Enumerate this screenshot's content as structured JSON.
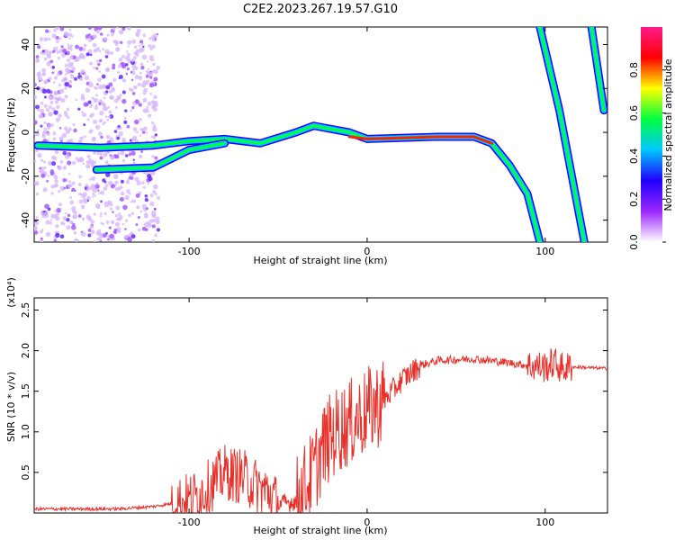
{
  "title": "C2E2.2023.267.19.57.G10",
  "chart_data": [
    {
      "type": "heatmap",
      "xlabel": "Height of straight line (km)",
      "ylabel": "Frequency (Hz)",
      "xlim": [
        -187,
        135
      ],
      "ylim": [
        -50,
        48
      ],
      "xticks": [
        -100,
        0,
        100
      ],
      "yticks": [
        -40,
        -20,
        0,
        20,
        40
      ],
      "colorbar": {
        "label": "Normalized spectral amplitude",
        "range": [
          0,
          1
        ],
        "ticks": [
          "0.0",
          "0.2",
          "0.4",
          "0.6",
          "0.8"
        ],
        "colors": [
          "#ffffff",
          "#9c27ff",
          "#2000ff",
          "#00c8ff",
          "#00ff40",
          "#ffff00",
          "#ff0000",
          "#ff1a8c"
        ]
      },
      "tracks": [
        {
          "name": "main",
          "points": [
            [
              -185,
              -6
            ],
            [
              -150,
              -7
            ],
            [
              -120,
              -6
            ],
            [
              -100,
              -4
            ],
            [
              -80,
              -3
            ],
            [
              -60,
              -5
            ],
            [
              -40,
              0
            ],
            [
              -30,
              3
            ],
            [
              -10,
              0
            ],
            [
              0,
              -3
            ],
            [
              40,
              -2
            ],
            [
              60,
              -2
            ],
            [
              70,
              -5
            ],
            [
              80,
              -15
            ],
            [
              90,
              -28
            ],
            [
              97,
              -50
            ]
          ]
        },
        {
          "name": "lower",
          "points": [
            [
              -152,
              -17
            ],
            [
              -120,
              -16
            ],
            [
              -100,
              -8
            ],
            [
              -80,
              -5
            ]
          ]
        },
        {
          "name": "steep-1",
          "points": [
            [
              97,
              48
            ],
            [
              108,
              10
            ],
            [
              122,
              -50
            ]
          ]
        },
        {
          "name": "steep-2",
          "points": [
            [
              126,
              48
            ],
            [
              133,
              10
            ]
          ]
        }
      ]
    },
    {
      "type": "line",
      "xlabel": "Height of straight line (km)",
      "ylabel": "SNR (10 * v/v)",
      "yscale_label": "(x10⁴)",
      "xlim": [
        -187,
        135
      ],
      "ylim": [
        0,
        2.65
      ],
      "xticks": [
        -100,
        0,
        100
      ],
      "yticks": [
        0.5,
        1.0,
        1.5,
        2.0,
        2.5
      ],
      "color": "#e8302a",
      "series": [
        {
          "x": [
            -187,
            -140,
            -120,
            -100,
            -90,
            -80,
            -70,
            -60,
            -55,
            -50,
            -40,
            -30,
            -25,
            -20,
            -15,
            -10,
            0,
            10,
            20,
            30,
            40,
            60,
            80,
            90,
            100,
            105,
            110,
            115,
            135
          ],
          "y": [
            0.05,
            0.05,
            0.08,
            0.15,
            0.3,
            0.5,
            0.45,
            0.3,
            0.25,
            0.1,
            0.15,
            0.5,
            0.8,
            0.95,
            1.05,
            1.1,
            1.25,
            1.4,
            1.65,
            1.82,
            1.88,
            1.9,
            1.85,
            1.82,
            1.8,
            1.85,
            1.78,
            1.8,
            1.78
          ]
        }
      ]
    }
  ]
}
